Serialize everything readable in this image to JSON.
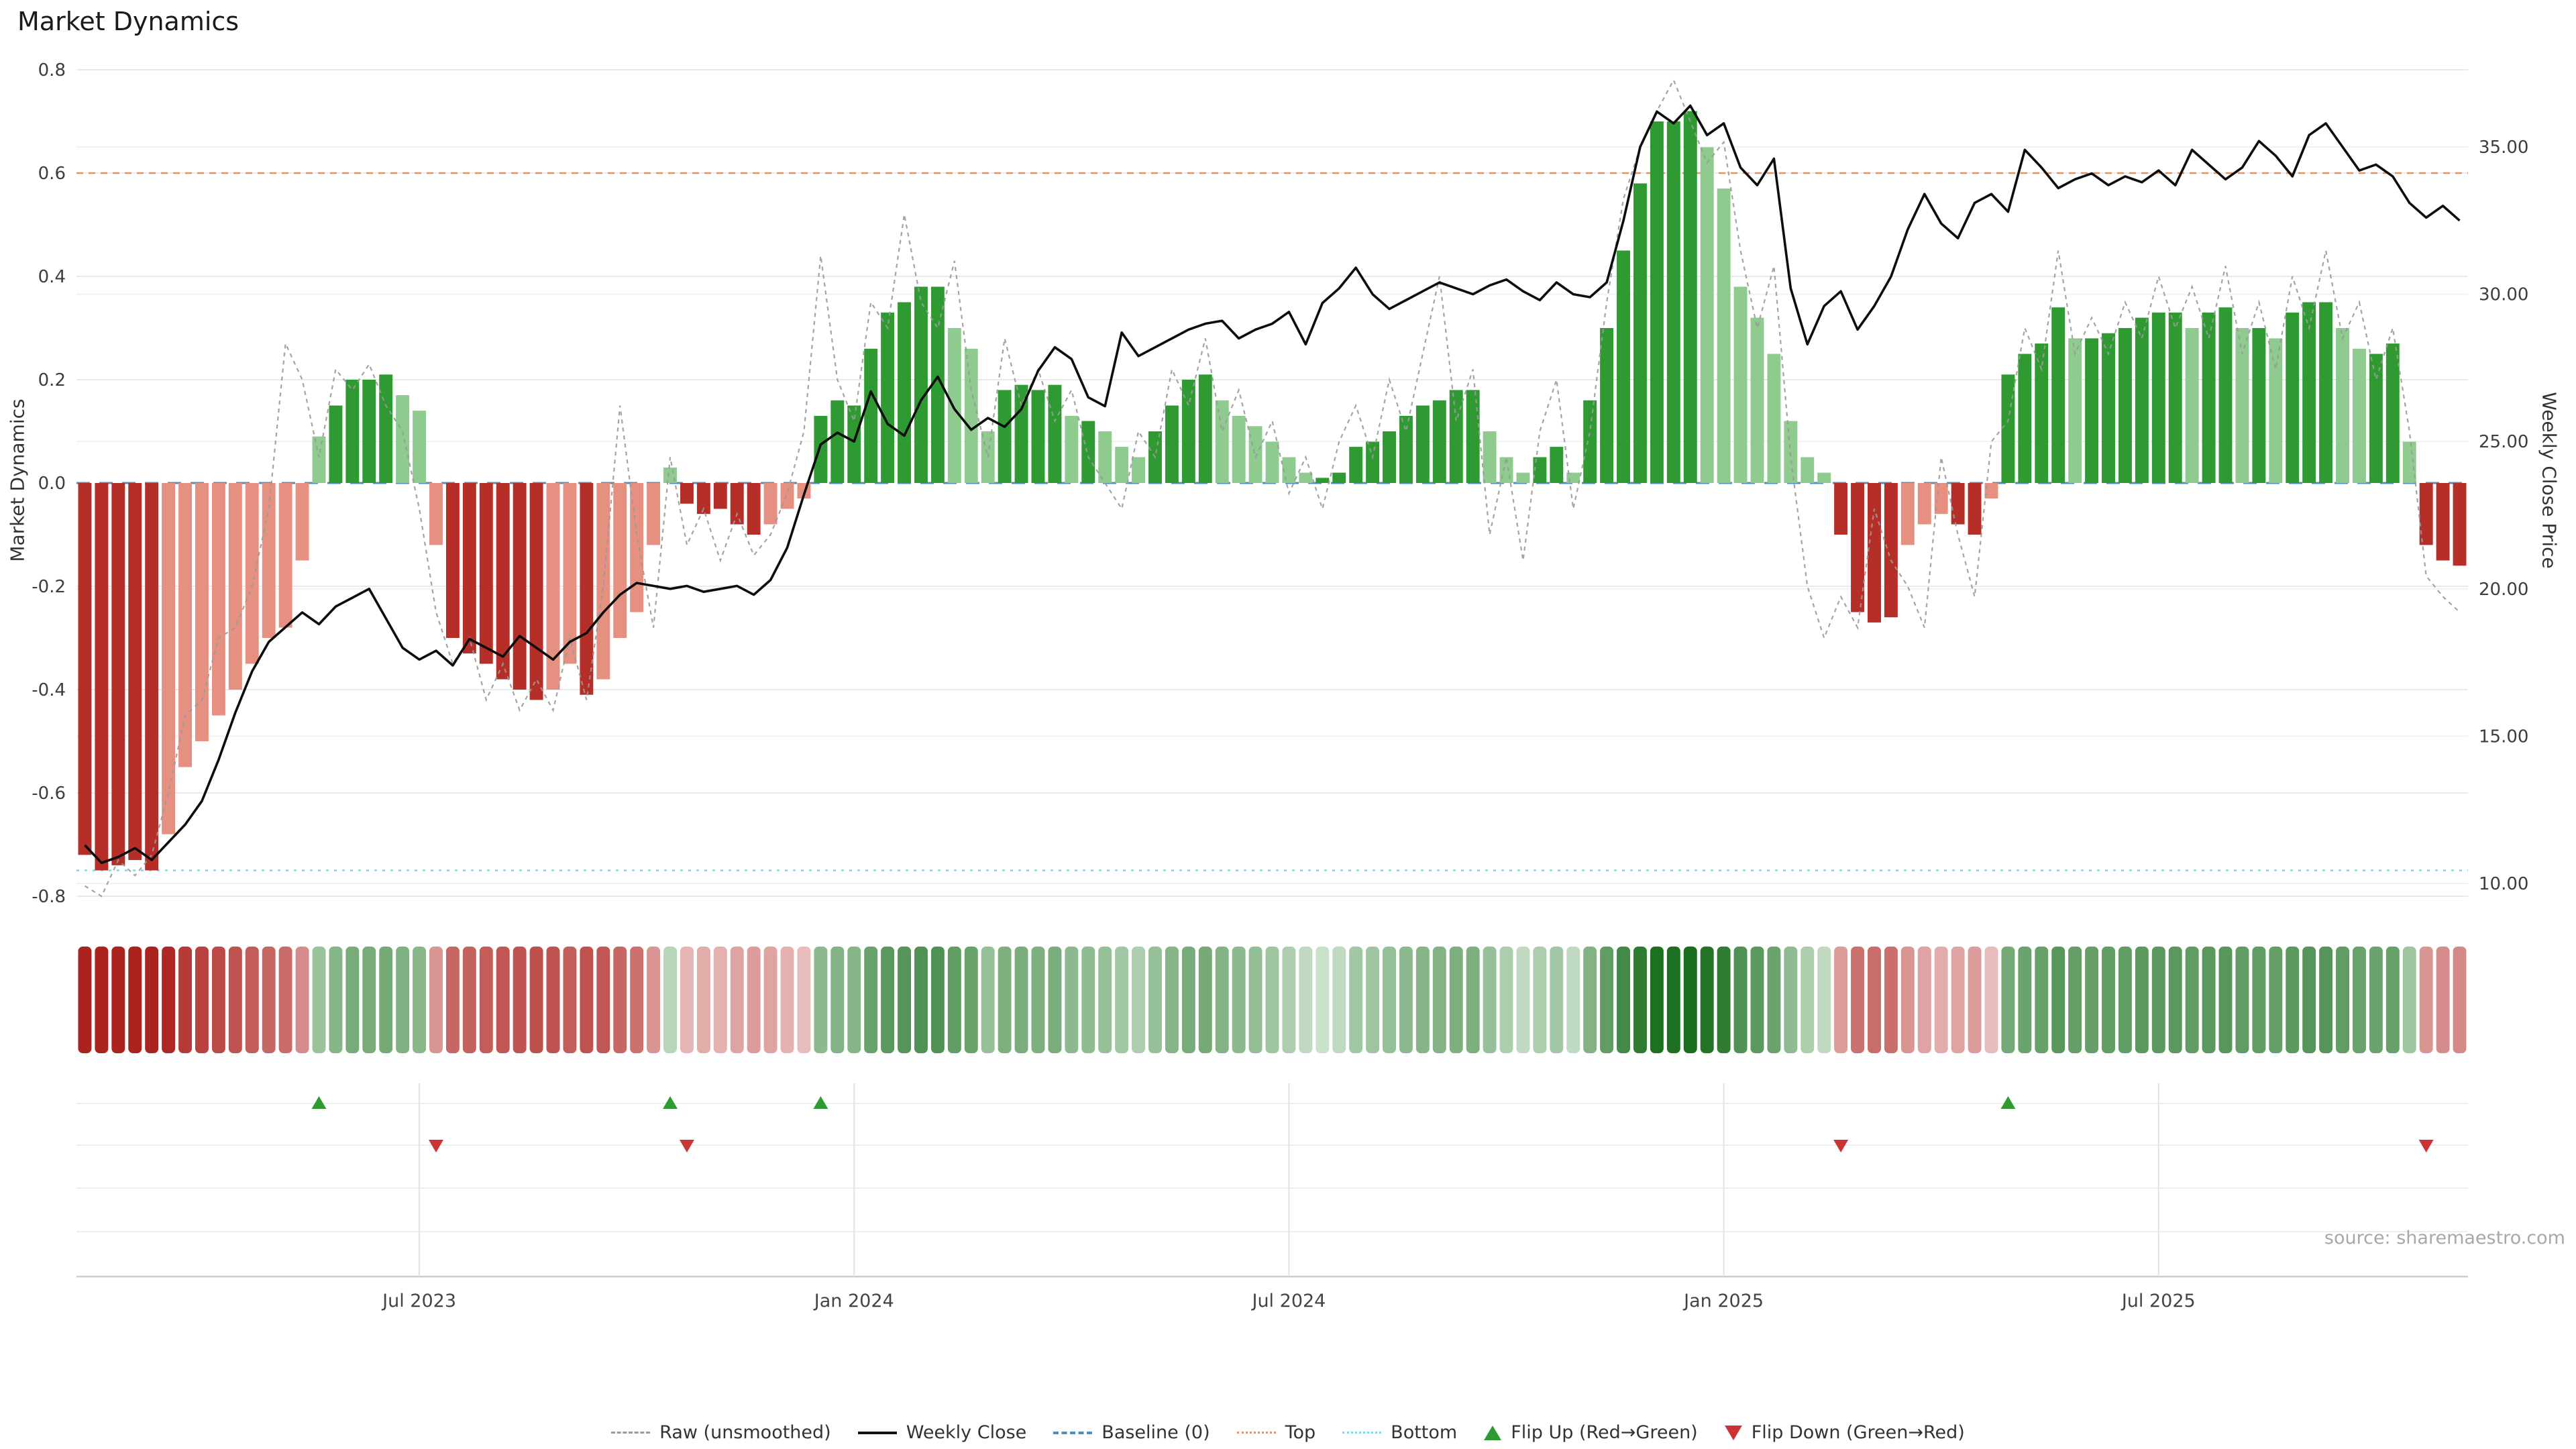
{
  "title": "Market Dynamics",
  "source": "source: sharemaestro.com",
  "axes": {
    "left_label": "Market Dynamics",
    "right_label": "Weekly Close Price",
    "left_ticks": [
      "0.8",
      "0.6",
      "0.4",
      "0.2",
      "0.0",
      "-0.2",
      "-0.4",
      "-0.6",
      "-0.8"
    ],
    "left_tick_values": [
      0.8,
      0.6,
      0.4,
      0.2,
      0,
      -0.2,
      -0.4,
      -0.6,
      -0.8
    ],
    "right_ticks": [
      "35.00",
      "30.00",
      "25.00",
      "20.00",
      "15.00",
      "10.00"
    ],
    "right_tick_values": [
      35,
      30,
      25,
      20,
      15,
      10
    ]
  },
  "colors": {
    "bar_pos_strong": "#2f9a32",
    "bar_pos_soft": "#8fca8f",
    "bar_neg_strong": "#b52f28",
    "bar_neg_soft": "#e59080",
    "close_line": "#0d0d0d",
    "raw_line": "#9a9a9a",
    "baseline": "#4f8fba",
    "top_line": "#e2935f",
    "bottom_line": "#86d5e0",
    "flip_up": "#2f9a32",
    "flip_down": "#cc3333"
  },
  "chart_data": {
    "type": "bar",
    "title": "Market Dynamics",
    "x_unit": "week",
    "x_tick_labels": [
      "Jul 2023",
      "Jan 2024",
      "Jul 2024",
      "Jan 2025",
      "Jul 2025"
    ],
    "x_tick_weeks": [
      20,
      46,
      72,
      98,
      124
    ],
    "ylim_left": [
      -0.8,
      0.8
    ],
    "ylim_right": [
      10,
      35
    ],
    "baseline": 0,
    "top_threshold": 0.6,
    "bottom_threshold": -0.75,
    "legend_position": "bottom-center",
    "grid": true,
    "series": [
      {
        "name": "Market Dynamics",
        "type": "bar",
        "axis": "left",
        "values": [
          -0.72,
          -0.75,
          -0.74,
          -0.73,
          -0.75,
          -0.68,
          -0.55,
          -0.5,
          -0.45,
          -0.4,
          -0.35,
          -0.3,
          -0.28,
          -0.15,
          0.09,
          0.15,
          0.2,
          0.2,
          0.21,
          0.17,
          0.14,
          -0.12,
          -0.3,
          -0.33,
          -0.35,
          -0.38,
          -0.4,
          -0.42,
          -0.4,
          -0.35,
          -0.41,
          -0.38,
          -0.3,
          -0.25,
          -0.12,
          0.03,
          -0.04,
          -0.06,
          -0.05,
          -0.08,
          -0.1,
          -0.08,
          -0.05,
          -0.03,
          0.13,
          0.16,
          0.15,
          0.26,
          0.33,
          0.35,
          0.38,
          0.38,
          0.3,
          0.26,
          0.1,
          0.18,
          0.19,
          0.18,
          0.19,
          0.13,
          0.12,
          0.1,
          0.07,
          0.05,
          0.1,
          0.15,
          0.2,
          0.21,
          0.16,
          0.13,
          0.11,
          0.08,
          0.05,
          0.02,
          0.01,
          0.02,
          0.07,
          0.08,
          0.1,
          0.13,
          0.15,
          0.16,
          0.18,
          0.18,
          0.1,
          0.05,
          0.02,
          0.05,
          0.07,
          0.02,
          0.16,
          0.3,
          0.45,
          0.58,
          0.7,
          0.7,
          0.72,
          0.65,
          0.57,
          0.38,
          0.32,
          0.25,
          0.12,
          0.05,
          0.02,
          -0.1,
          -0.25,
          -0.27,
          -0.26,
          -0.12,
          -0.08,
          -0.06,
          -0.08,
          -0.1,
          -0.03,
          0.21,
          0.25,
          0.27,
          0.34,
          0.28,
          0.28,
          0.29,
          0.3,
          0.32,
          0.33,
          0.33,
          0.3,
          0.33,
          0.34,
          0.3,
          0.3,
          0.28,
          0.33,
          0.35,
          0.35,
          0.3,
          0.26,
          0.25,
          0.27,
          0.08,
          -0.12,
          -0.15,
          -0.16
        ]
      },
      {
        "name": "Raw (unsmoothed)",
        "type": "line",
        "style": "dashed",
        "axis": "left",
        "values": [
          -0.78,
          -0.8,
          -0.73,
          -0.76,
          -0.72,
          -0.6,
          -0.45,
          -0.42,
          -0.3,
          -0.28,
          -0.2,
          -0.05,
          0.27,
          0.2,
          0.05,
          0.22,
          0.18,
          0.23,
          0.15,
          0.1,
          -0.05,
          -0.25,
          -0.35,
          -0.3,
          -0.42,
          -0.35,
          -0.44,
          -0.38,
          -0.44,
          -0.3,
          -0.42,
          -0.2,
          0.15,
          -0.1,
          -0.28,
          0.05,
          -0.12,
          -0.05,
          -0.15,
          -0.06,
          -0.14,
          -0.1,
          -0.02,
          0.1,
          0.44,
          0.2,
          0.12,
          0.35,
          0.3,
          0.52,
          0.35,
          0.3,
          0.43,
          0.18,
          0.05,
          0.28,
          0.15,
          0.22,
          0.12,
          0.18,
          0.05,
          0,
          -0.05,
          0.1,
          0.05,
          0.22,
          0.15,
          0.28,
          0.1,
          0.18,
          0.05,
          0.12,
          -0.02,
          0.05,
          -0.05,
          0.08,
          0.15,
          0.05,
          0.2,
          0.1,
          0.25,
          0.4,
          0.12,
          0.22,
          -0.1,
          0.05,
          -0.15,
          0.1,
          0.2,
          -0.05,
          0.1,
          0.35,
          0.55,
          0.65,
          0.72,
          0.78,
          0.7,
          0.62,
          0.66,
          0.45,
          0.3,
          0.42,
          0.05,
          -0.2,
          -0.3,
          -0.22,
          -0.28,
          -0.05,
          -0.15,
          -0.2,
          -0.28,
          0.05,
          -0.1,
          -0.22,
          0.08,
          0.12,
          0.3,
          0.22,
          0.45,
          0.25,
          0.32,
          0.25,
          0.35,
          0.28,
          0.4,
          0.3,
          0.38,
          0.28,
          0.42,
          0.25,
          0.35,
          0.22,
          0.4,
          0.3,
          0.45,
          0.28,
          0.35,
          0.2,
          0.3,
          0.1,
          -0.18,
          -0.22,
          -0.25
        ]
      },
      {
        "name": "Weekly Close",
        "type": "line",
        "style": "solid",
        "axis": "right",
        "values": [
          11.3,
          10.7,
          10.9,
          11.2,
          10.8,
          11.4,
          12,
          12.8,
          14.2,
          15.8,
          17.2,
          18.2,
          18.7,
          19.2,
          18.8,
          19.4,
          19.7,
          20,
          19,
          18,
          17.6,
          17.9,
          17.4,
          18.3,
          18,
          17.7,
          18.4,
          18,
          17.6,
          18.2,
          18.5,
          19.2,
          19.8,
          20.2,
          20.1,
          20,
          20.1,
          19.9,
          20,
          20.1,
          19.8,
          20.3,
          21.4,
          23.2,
          24.9,
          25.3,
          25,
          26.7,
          25.6,
          25.2,
          26.4,
          27.2,
          26.1,
          25.4,
          25.8,
          25.5,
          26.1,
          27.4,
          28.2,
          27.8,
          26.5,
          26.2,
          28.7,
          27.9,
          28.2,
          28.5,
          28.8,
          29,
          29.1,
          28.5,
          28.8,
          29,
          29.4,
          28.3,
          29.7,
          30.2,
          30.9,
          30,
          29.5,
          29.8,
          30.1,
          30.4,
          30.2,
          30,
          30.3,
          30.5,
          30.1,
          29.8,
          30.4,
          30,
          29.9,
          30.4,
          32.5,
          35,
          36.2,
          35.8,
          36.4,
          35.4,
          35.8,
          34.3,
          33.7,
          34.6,
          30.2,
          28.3,
          29.6,
          30.1,
          28.8,
          29.6,
          30.6,
          32.2,
          33.4,
          32.4,
          31.9,
          33.1,
          33.4,
          32.8,
          34.9,
          34.3,
          33.6,
          33.9,
          34.1,
          33.7,
          34,
          33.8,
          34.2,
          33.7,
          34.9,
          34.4,
          33.9,
          34.3,
          35.2,
          34.7,
          34,
          35.4,
          35.8,
          35,
          34.2,
          34.4,
          34,
          33.1,
          32.6,
          33,
          32.5
        ]
      }
    ],
    "flip_up_weeks": [
      14,
      35,
      44,
      115
    ],
    "flip_down_weeks": [
      21,
      36,
      105,
      140
    ],
    "heatmap_strip": "red-green intensity derived from Market Dynamics bar values"
  },
  "legend": {
    "items": [
      {
        "name": "raw",
        "label": "Raw (unsmoothed)"
      },
      {
        "name": "weekly-close",
        "label": "Weekly Close"
      },
      {
        "name": "baseline",
        "label": "Baseline (0)"
      },
      {
        "name": "top",
        "label": "Top"
      },
      {
        "name": "bottom",
        "label": "Bottom"
      },
      {
        "name": "flip-up",
        "label": "Flip Up (Red→Green)"
      },
      {
        "name": "flip-down",
        "label": "Flip Down (Green→Red)"
      }
    ]
  }
}
